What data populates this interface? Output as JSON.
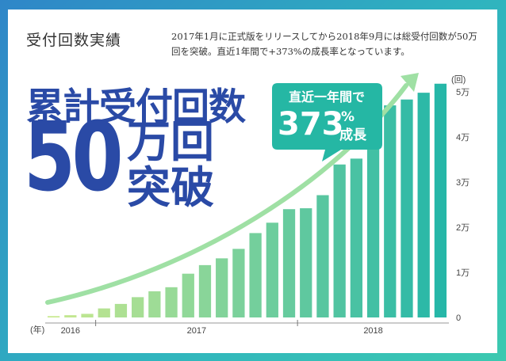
{
  "page": {
    "heading": "受付回数実績",
    "description": "2017年1月に正式版をリリースしてから2018年9月には総受付回数が50万回を突破。直近1年間で+373%の成長率となっています。",
    "hero_line1": "累計受付回数",
    "hero_number": "50",
    "hero_line2": "万回",
    "hero_line3": "突破"
  },
  "callout": {
    "line1": "直近一年間で",
    "number": "373",
    "unit": "%",
    "suffix": "成長",
    "color": "#25b7a4"
  },
  "colors": {
    "hero": "#2a4aa6",
    "bar_start": "#c9e98f",
    "bar_end": "#26b7a8",
    "arrow": "#8fdc9d"
  },
  "chart_data": {
    "type": "bar",
    "title": "",
    "xlabel": "(年)",
    "ylabel": "(回)",
    "y_ticks": [
      0,
      10000,
      20000,
      30000,
      40000,
      50000
    ],
    "y_tick_labels": [
      "0",
      "1万",
      "2万",
      "3万",
      "4万",
      "5万"
    ],
    "ylim": [
      0,
      56000
    ],
    "year_labels": [
      {
        "label": "2016",
        "from": 0,
        "to": 2
      },
      {
        "label": "2017",
        "from": 3,
        "to": 14
      },
      {
        "label": "2018",
        "from": 15,
        "to": 23
      }
    ],
    "values": [
      300,
      500,
      800,
      2000,
      3000,
      4500,
      5800,
      6700,
      9700,
      11600,
      13100,
      15200,
      18700,
      21000,
      24000,
      24200,
      27100,
      33900,
      35200,
      40500,
      47000,
      48300,
      49800,
      51800
    ]
  }
}
